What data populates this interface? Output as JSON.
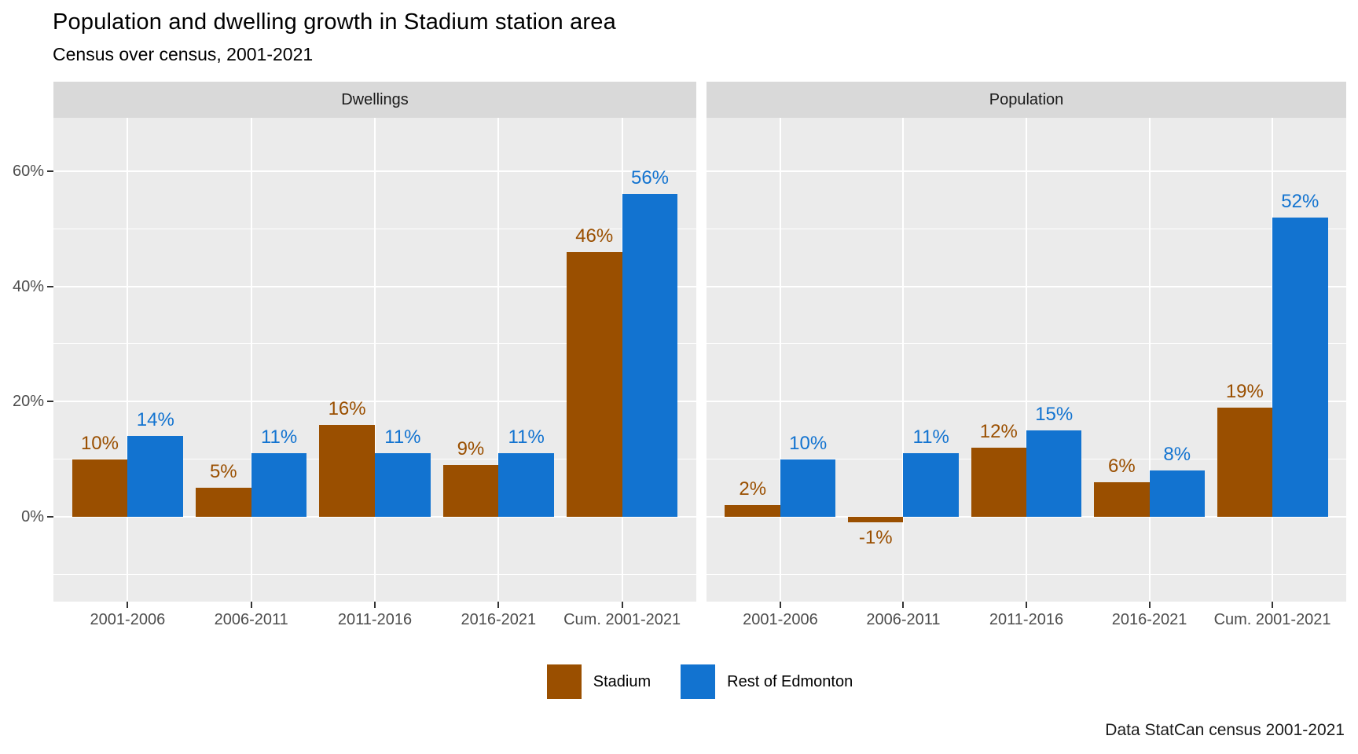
{
  "title": "Population and dwelling growth in Stadium station area",
  "subtitle": "Census over census, 2001-2021",
  "caption": "Data StatCan census 2001-2021",
  "legend": {
    "position": "bottom",
    "items": [
      {
        "label": "Stadium",
        "color": "#9A4F00"
      },
      {
        "label": "Rest of Edmonton",
        "color": "#1273D0"
      }
    ]
  },
  "chart_data": {
    "type": "bar",
    "title": "Population and dwelling growth in Stadium station area",
    "subtitle": "Census over census, 2001-2021",
    "caption": "Data StatCan census 2001-2021",
    "categories": [
      "2001-2006",
      "2006-2011",
      "2011-2016",
      "2016-2021",
      "Cum. 2001-2021"
    ],
    "facets": [
      {
        "label": "Dwellings",
        "series": [
          {
            "name": "Stadium",
            "color": "#9A4F00",
            "values": [
              10,
              5,
              16,
              9,
              46
            ],
            "labels": [
              "10%",
              "5%",
              "16%",
              "9%",
              "46%"
            ]
          },
          {
            "name": "Rest of Edmonton",
            "color": "#1273D0",
            "values": [
              14,
              11,
              11,
              11,
              56
            ],
            "labels": [
              "14%",
              "11%",
              "11%",
              "11%",
              "56%"
            ]
          }
        ]
      },
      {
        "label": "Population",
        "series": [
          {
            "name": "Stadium",
            "color": "#9A4F00",
            "values": [
              2,
              -1,
              12,
              6,
              19
            ],
            "labels": [
              "2%",
              "-1%",
              "12%",
              "6%",
              "19%"
            ]
          },
          {
            "name": "Rest of Edmonton",
            "color": "#1273D0",
            "values": [
              10,
              11,
              15,
              8,
              52
            ],
            "labels": [
              "10%",
              "11%",
              "15%",
              "8%",
              "52%"
            ]
          }
        ]
      }
    ],
    "y_axis": {
      "tick_values": [
        0,
        20,
        40,
        60
      ],
      "tick_labels": [
        "0%",
        "20%",
        "40%",
        "60%"
      ],
      "minor_values": [
        -10,
        10,
        30,
        50
      ],
      "ylim": [
        -14.7,
        69.3
      ]
    },
    "grid": true,
    "legend_position": "bottom",
    "panel_background": "#EBEBEB",
    "strip_background": "#D9D9D9",
    "gridline_color": "#FFFFFF"
  }
}
